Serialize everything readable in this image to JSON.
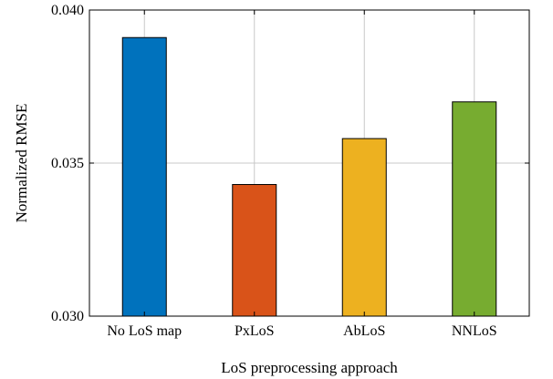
{
  "chart_data": {
    "type": "bar",
    "title": "",
    "xlabel": "LoS preprocessing approach",
    "ylabel": "Normalized RMSE",
    "categories": [
      "No LoS map",
      "PxLoS",
      "AbLoS",
      "NNLoS"
    ],
    "values": [
      0.0391,
      0.0343,
      0.0358,
      0.037
    ],
    "colors": [
      "#0072bd",
      "#d95319",
      "#edb120",
      "#77ac30"
    ],
    "ylim": [
      0.03,
      0.04
    ],
    "yticks": [
      0.03,
      0.035,
      0.04
    ],
    "ytick_labels": [
      "0.030",
      "0.035",
      "0.040"
    ],
    "grid": true,
    "legend": "none"
  }
}
